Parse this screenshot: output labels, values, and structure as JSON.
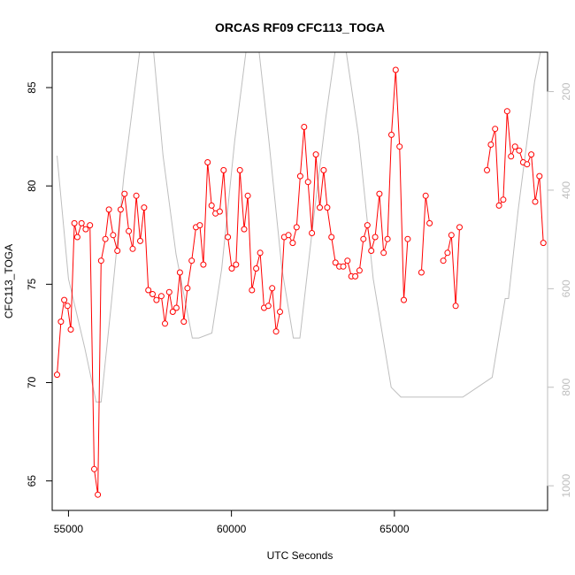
{
  "chart_data": {
    "type": "line",
    "title": "ORCAS RF09 CFC113_TOGA",
    "xlabel": "UTC Seconds",
    "ylabel": "CFC113_TOGA",
    "xlim": [
      54500,
      69700
    ],
    "ylim": [
      63.5,
      86.8
    ],
    "y2lim": [
      1050,
      120
    ],
    "x_ticks": [
      55000,
      60000,
      65000
    ],
    "x_tick_labels": [
      "55000",
      "60000",
      "65000"
    ],
    "y_ticks": [
      65,
      70,
      75,
      80,
      85
    ],
    "y_tick_labels": [
      "65",
      "70",
      "75",
      "80",
      "85"
    ],
    "y2_ticks": [
      200,
      400,
      600,
      800,
      1000
    ],
    "y2_tick_labels": [
      "200",
      "400",
      "600",
      "800",
      "1000"
    ],
    "grid": false,
    "colors": {
      "series": "#ff0000",
      "secondary": "#bebebe",
      "axis": "#000000",
      "axis2": "#bebebe"
    },
    "series": [
      {
        "color": "#ff0000",
        "marker": "open-circle",
        "segments": [
          [
            [
              54650,
              70.4
            ],
            [
              54770,
              73.1
            ],
            [
              54870,
              74.2
            ],
            [
              54970,
              73.9
            ],
            [
              55070,
              72.7
            ],
            [
              55180,
              78.1
            ],
            [
              55270,
              77.4
            ],
            [
              55400,
              78.1
            ],
            [
              55530,
              77.8
            ],
            [
              55660,
              78.0
            ],
            [
              55790,
              65.6
            ],
            [
              55900,
              64.3
            ],
            [
              56000,
              76.2
            ],
            [
              56130,
              77.3
            ],
            [
              56240,
              78.8
            ],
            [
              56370,
              77.5
            ],
            [
              56500,
              76.7
            ],
            [
              56600,
              78.8
            ],
            [
              56720,
              79.6
            ],
            [
              56850,
              77.7
            ],
            [
              56970,
              76.8
            ],
            [
              57080,
              79.5
            ],
            [
              57200,
              77.2
            ],
            [
              57320,
              78.9
            ],
            [
              57450,
              74.7
            ],
            [
              57580,
              74.5
            ],
            [
              57700,
              74.2
            ],
            [
              57850,
              74.4
            ],
            [
              57960,
              73.0
            ],
            [
              58090,
              74.6
            ],
            [
              58200,
              73.6
            ],
            [
              58310,
              73.8
            ],
            [
              58420,
              75.6
            ],
            [
              58540,
              73.1
            ],
            [
              58650,
              74.8
            ],
            [
              58780,
              76.2
            ],
            [
              58910,
              77.9
            ],
            [
              59030,
              78.0
            ],
            [
              59140,
              76.0
            ],
            [
              59270,
              81.2
            ],
            [
              59390,
              79.0
            ],
            [
              59510,
              78.6
            ],
            [
              59640,
              78.7
            ],
            [
              59760,
              80.8
            ],
            [
              59890,
              77.4
            ],
            [
              60010,
              75.8
            ],
            [
              60140,
              76.0
            ],
            [
              60260,
              80.8
            ],
            [
              60390,
              77.8
            ],
            [
              60500,
              79.5
            ],
            [
              60630,
              74.7
            ],
            [
              60760,
              75.8
            ],
            [
              60880,
              76.6
            ],
            [
              61000,
              73.8
            ],
            [
              61130,
              73.9
            ],
            [
              61250,
              74.8
            ],
            [
              61370,
              72.6
            ],
            [
              61490,
              73.6
            ],
            [
              61620,
              77.4
            ],
            [
              61750,
              77.5
            ],
            [
              61880,
              77.1
            ],
            [
              62000,
              77.9
            ],
            [
              62110,
              80.5
            ],
            [
              62230,
              83.0
            ],
            [
              62350,
              80.2
            ],
            [
              62470,
              77.6
            ],
            [
              62590,
              81.6
            ],
            [
              62710,
              78.9
            ],
            [
              62830,
              80.8
            ],
            [
              62940,
              78.9
            ],
            [
              63070,
              77.4
            ],
            [
              63190,
              76.1
            ],
            [
              63310,
              75.9
            ],
            [
              63430,
              75.9
            ],
            [
              63560,
              76.2
            ],
            [
              63680,
              75.4
            ],
            [
              63800,
              75.4
            ],
            [
              63930,
              75.7
            ],
            [
              64050,
              77.3
            ],
            [
              64170,
              78.0
            ],
            [
              64290,
              76.7
            ],
            [
              64410,
              77.4
            ],
            [
              64540,
              79.6
            ],
            [
              64670,
              76.6
            ],
            [
              64790,
              77.3
            ],
            [
              64910,
              82.6
            ],
            [
              65040,
              85.9
            ],
            [
              65160,
              82.0
            ],
            [
              65290,
              74.2
            ],
            [
              65410,
              77.3
            ]
          ],
          [
            [
              65830,
              75.6
            ],
            [
              65960,
              79.5
            ],
            [
              66080,
              78.1
            ]
          ],
          [
            [
              66500,
              76.2
            ],
            [
              66630,
              76.6
            ],
            [
              66750,
              77.5
            ],
            [
              66880,
              73.9
            ],
            [
              67000,
              77.9
            ]
          ],
          [
            [
              67840,
              80.8
            ],
            [
              67960,
              82.1
            ],
            [
              68090,
              82.9
            ],
            [
              68210,
              79.0
            ],
            [
              68340,
              79.3
            ],
            [
              68460,
              83.8
            ],
            [
              68580,
              81.5
            ],
            [
              68700,
              82.0
            ],
            [
              68830,
              81.8
            ],
            [
              68950,
              81.2
            ],
            [
              69070,
              81.1
            ],
            [
              69200,
              81.6
            ],
            [
              69320,
              79.2
            ],
            [
              69450,
              80.5
            ],
            [
              69570,
              77.1
            ]
          ]
        ]
      },
      {
        "axis": "secondary",
        "color": "#bebebe",
        "marker": "none",
        "points": [
          [
            54650,
            330
          ],
          [
            55000,
            580
          ],
          [
            55500,
            720
          ],
          [
            55850,
            830
          ],
          [
            56000,
            830
          ],
          [
            56300,
            640
          ],
          [
            56700,
            370
          ],
          [
            57200,
            110
          ],
          [
            57600,
            110
          ],
          [
            57900,
            330
          ],
          [
            58300,
            530
          ],
          [
            58800,
            700
          ],
          [
            59000,
            700
          ],
          [
            59400,
            690
          ],
          [
            59700,
            560
          ],
          [
            60100,
            300
          ],
          [
            60500,
            90
          ],
          [
            60800,
            90
          ],
          [
            61150,
            300
          ],
          [
            61550,
            560
          ],
          [
            61900,
            700
          ],
          [
            62100,
            700
          ],
          [
            62500,
            470
          ],
          [
            62900,
            250
          ],
          [
            63200,
            110
          ],
          [
            63500,
            110
          ],
          [
            63900,
            290
          ],
          [
            64350,
            580
          ],
          [
            64900,
            800
          ],
          [
            65200,
            820
          ],
          [
            66000,
            820
          ],
          [
            67100,
            820
          ],
          [
            68000,
            780
          ],
          [
            68400,
            620
          ],
          [
            68500,
            620
          ],
          [
            68800,
            440
          ],
          [
            69300,
            180
          ],
          [
            69600,
            80
          ]
        ]
      }
    ]
  }
}
